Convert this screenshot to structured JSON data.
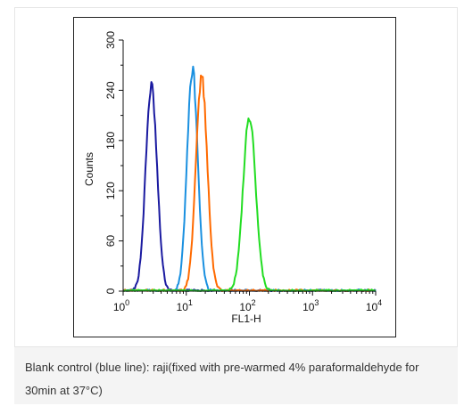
{
  "chart_data": {
    "type": "line",
    "xlabel": "FL1-H",
    "ylabel": "Counts",
    "xscale": "log",
    "xlim": [
      1,
      10000
    ],
    "ylim": [
      0,
      300
    ],
    "x_ticks": [
      {
        "value": 1,
        "base": "10",
        "exp": "0"
      },
      {
        "value": 10,
        "base": "10",
        "exp": "1"
      },
      {
        "value": 100,
        "base": "10",
        "exp": "2"
      },
      {
        "value": 1000,
        "base": "10",
        "exp": "3"
      },
      {
        "value": 10000,
        "base": "10",
        "exp": "4"
      }
    ],
    "y_ticks": [
      "0",
      "60",
      "120",
      "180",
      "240",
      "300"
    ],
    "y_tick_values": [
      0,
      60,
      120,
      180,
      240,
      300
    ],
    "grid": false,
    "series": [
      {
        "color": "#1a1aa0",
        "peak_x": 2.8,
        "peak_y": 245,
        "width_decades": 0.09
      },
      {
        "color": "#1a90e0",
        "peak_x": 12.5,
        "peak_y": 265,
        "width_decades": 0.085
      },
      {
        "color": "#ff6a00",
        "peak_x": 17.5,
        "peak_y": 254,
        "width_decades": 0.09
      },
      {
        "color": "#22dd22",
        "peak_x": 100,
        "peak_y": 208,
        "width_decades": 0.1
      }
    ]
  },
  "caption": "Blank control (blue line): raji(fixed with pre-warmed 4% paraformaldehyde for 30min at 37°C)"
}
